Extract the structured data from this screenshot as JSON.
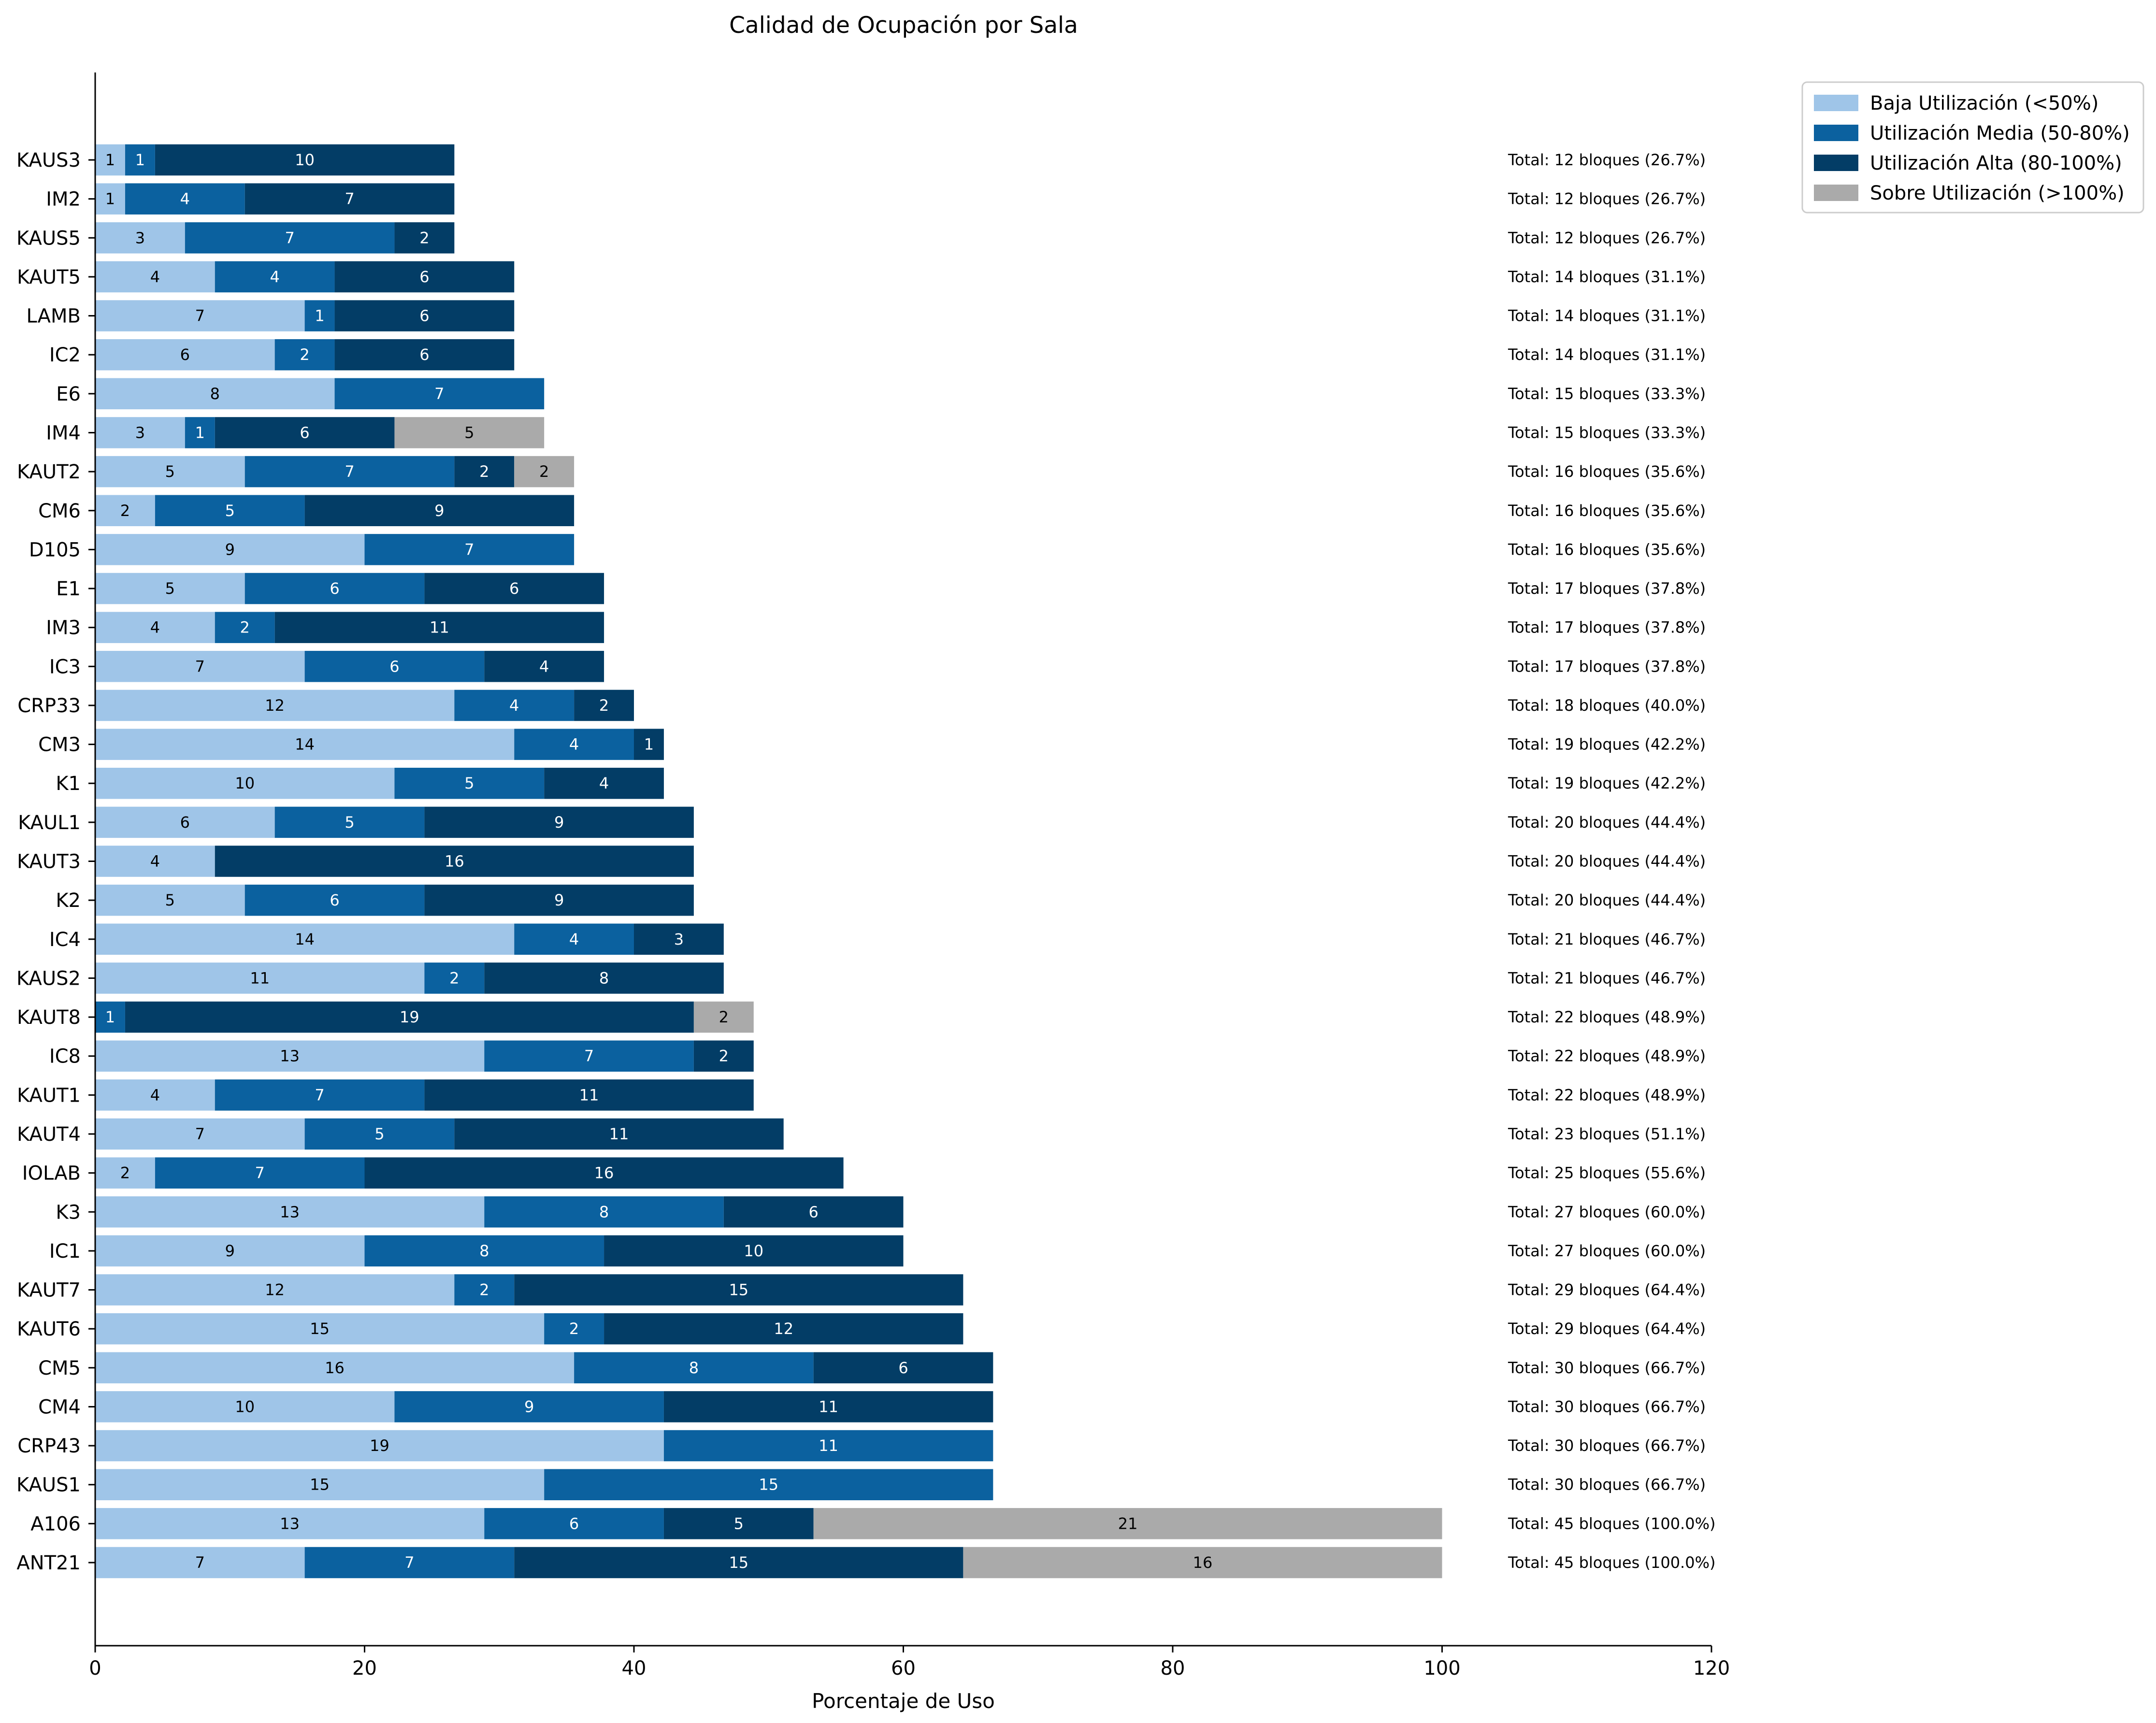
{
  "chart_data": {
    "type": "bar",
    "orientation": "horizontal",
    "stacked": true,
    "title": "Calidad de Ocupación por Sala",
    "xlabel": "Porcentaje de Uso",
    "ylabel": "",
    "xlim": [
      0,
      120
    ],
    "xticks": [
      0,
      20,
      40,
      60,
      80,
      100,
      120
    ],
    "grid": false,
    "legend_position": "top-right, outside plot",
    "total_blocks": 45,
    "categories": [
      "KAUS3",
      "IM2",
      "KAUS5",
      "KAUT5",
      "LAMB",
      "IC2",
      "E6",
      "IM4",
      "KAUT2",
      "CM6",
      "D105",
      "E1",
      "IM3",
      "IC3",
      "CRP33",
      "CM3",
      "K1",
      "KAUL1",
      "KAUT3",
      "K2",
      "IC4",
      "KAUS2",
      "KAUT8",
      "IC8",
      "KAUT1",
      "KAUT4",
      "IOLAB",
      "K3",
      "IC1",
      "KAUT7",
      "KAUT6",
      "CM5",
      "CM4",
      "CRP43",
      "KAUS1",
      "A106",
      "ANT21"
    ],
    "series": [
      {
        "name": "Baja Utilización (<50%)",
        "color": "#9fc5e8",
        "text_color": "#000000",
        "values": [
          1,
          1,
          3,
          4,
          7,
          6,
          8,
          3,
          5,
          2,
          9,
          5,
          4,
          7,
          12,
          14,
          10,
          6,
          4,
          5,
          14,
          11,
          0,
          13,
          4,
          7,
          2,
          13,
          9,
          12,
          15,
          16,
          10,
          19,
          15,
          13,
          7
        ]
      },
      {
        "name": "Utilización Media (50-80%)",
        "color": "#0b619f",
        "text_color": "#ffffff",
        "values": [
          1,
          4,
          7,
          4,
          1,
          2,
          7,
          1,
          7,
          5,
          7,
          6,
          2,
          6,
          4,
          4,
          5,
          5,
          0,
          6,
          4,
          2,
          1,
          7,
          7,
          5,
          7,
          8,
          8,
          2,
          2,
          8,
          9,
          11,
          15,
          6,
          7
        ]
      },
      {
        "name": "Utilización Alta (80-100%)",
        "color": "#033d66",
        "text_color": "#ffffff",
        "values": [
          10,
          7,
          2,
          6,
          6,
          6,
          0,
          6,
          2,
          9,
          0,
          6,
          11,
          4,
          2,
          1,
          4,
          9,
          16,
          9,
          3,
          8,
          19,
          2,
          11,
          11,
          16,
          6,
          10,
          15,
          12,
          6,
          11,
          0,
          0,
          5,
          15
        ]
      },
      {
        "name": "Sobre Utilización (>100%)",
        "color": "#aaaaaa",
        "text_color": "#000000",
        "values": [
          0,
          0,
          0,
          0,
          0,
          0,
          0,
          5,
          2,
          0,
          0,
          0,
          0,
          0,
          0,
          0,
          0,
          0,
          0,
          0,
          0,
          0,
          2,
          0,
          0,
          0,
          0,
          0,
          0,
          0,
          0,
          0,
          0,
          0,
          0,
          21,
          16
        ]
      }
    ],
    "annotations": [
      "Total: 12 bloques (26.7%)",
      "Total: 12 bloques (26.7%)",
      "Total: 12 bloques (26.7%)",
      "Total: 14 bloques (31.1%)",
      "Total: 14 bloques (31.1%)",
      "Total: 14 bloques (31.1%)",
      "Total: 15 bloques (33.3%)",
      "Total: 15 bloques (33.3%)",
      "Total: 16 bloques (35.6%)",
      "Total: 16 bloques (35.6%)",
      "Total: 16 bloques (35.6%)",
      "Total: 17 bloques (37.8%)",
      "Total: 17 bloques (37.8%)",
      "Total: 17 bloques (37.8%)",
      "Total: 18 bloques (40.0%)",
      "Total: 19 bloques (42.2%)",
      "Total: 19 bloques (42.2%)",
      "Total: 20 bloques (44.4%)",
      "Total: 20 bloques (44.4%)",
      "Total: 20 bloques (44.4%)",
      "Total: 21 bloques (46.7%)",
      "Total: 21 bloques (46.7%)",
      "Total: 22 bloques (48.9%)",
      "Total: 22 bloques (48.9%)",
      "Total: 22 bloques (48.9%)",
      "Total: 23 bloques (51.1%)",
      "Total: 25 bloques (55.6%)",
      "Total: 27 bloques (60.0%)",
      "Total: 27 bloques (60.0%)",
      "Total: 29 bloques (64.4%)",
      "Total: 29 bloques (64.4%)",
      "Total: 30 bloques (66.7%)",
      "Total: 30 bloques (66.7%)",
      "Total: 30 bloques (66.7%)",
      "Total: 30 bloques (66.7%)",
      "Total: 45 bloques (100.0%)",
      "Total: 45 bloques (100.0%)"
    ]
  }
}
